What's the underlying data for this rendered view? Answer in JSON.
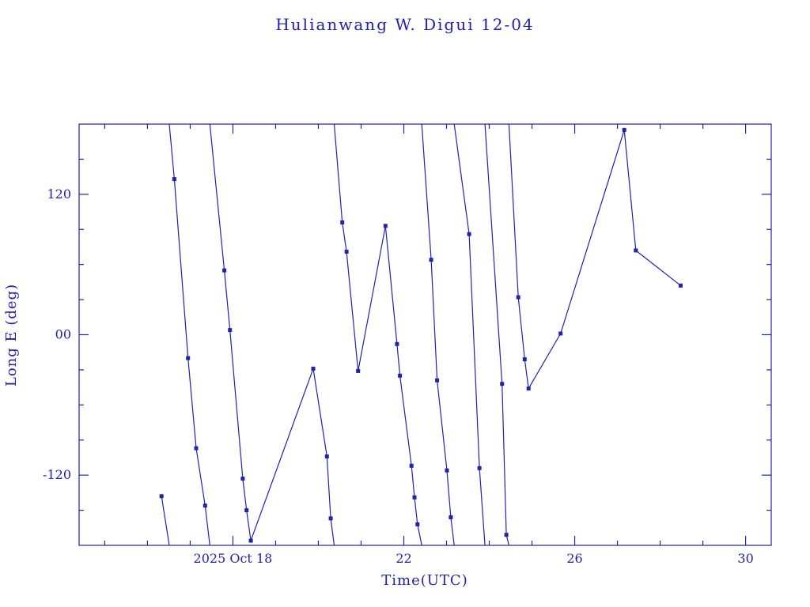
{
  "chart_data": {
    "type": "line",
    "title": "Hulianwang W. Digui 12-04",
    "xlabel": "Time(UTC)",
    "ylabel": "Long E (deg)",
    "x_unit": "day of October 2025 (UTC)",
    "y_unit": "degrees longitude East",
    "xlim": [
      14.4,
      30.6
    ],
    "ylim": [
      -180,
      180
    ],
    "grid": false,
    "legend": false,
    "line_color": "#2222aa",
    "marker": "square",
    "x_major_ticks": [
      {
        "v": 18,
        "label": "2025 Oct 18"
      },
      {
        "v": 22,
        "label": "22"
      },
      {
        "v": 26,
        "label": "26"
      },
      {
        "v": 30,
        "label": "30"
      }
    ],
    "x_minor_ticks": [
      15,
      16,
      17,
      19,
      20,
      21,
      23,
      24,
      25,
      27,
      28,
      29
    ],
    "y_major_ticks": [
      {
        "v": -120,
        "label": "-120"
      },
      {
        "v": 0,
        "label": "00"
      },
      {
        "v": 120,
        "label": "120"
      }
    ],
    "y_minor_ticks": [
      -150,
      -90,
      -60,
      -30,
      30,
      60,
      90,
      150
    ],
    "series_note": "single track, longitude wraps at +/-180; each segment drawn edge-to-edge; third element 1 = square marker plotted",
    "segments": [
      {
        "points": [
          [
            16.33,
            -138,
            1
          ],
          [
            16.51,
            -180,
            0
          ]
        ]
      },
      {
        "points": [
          [
            16.51,
            180,
            0
          ],
          [
            16.63,
            133,
            1
          ],
          [
            16.95,
            -20,
            1
          ],
          [
            17.14,
            -97,
            1
          ],
          [
            17.35,
            -146,
            1
          ],
          [
            17.46,
            -180,
            0
          ]
        ]
      },
      {
        "points": [
          [
            17.46,
            180,
            0
          ],
          [
            17.8,
            55,
            1
          ],
          [
            17.93,
            4,
            1
          ],
          [
            18.23,
            -123,
            1
          ],
          [
            18.32,
            -150,
            1
          ],
          [
            18.42,
            -176,
            1
          ],
          [
            19.88,
            -29,
            1
          ],
          [
            20.2,
            -104,
            1
          ],
          [
            20.29,
            -157,
            1
          ],
          [
            20.37,
            -180,
            0
          ]
        ]
      },
      {
        "points": [
          [
            20.37,
            180,
            0
          ],
          [
            20.56,
            96,
            1
          ],
          [
            20.66,
            71,
            1
          ],
          [
            20.93,
            -31,
            1
          ],
          [
            21.57,
            93,
            1
          ],
          [
            21.84,
            -8,
            1
          ],
          [
            21.91,
            -35,
            1
          ],
          [
            22.18,
            -112,
            1
          ],
          [
            22.25,
            -139,
            1
          ],
          [
            22.32,
            -162,
            1
          ],
          [
            22.42,
            -180,
            0
          ]
        ]
      },
      {
        "points": [
          [
            22.42,
            180,
            0
          ],
          [
            22.64,
            64,
            1
          ],
          [
            22.78,
            -39,
            1
          ],
          [
            23.01,
            -116,
            1
          ],
          [
            23.1,
            -156,
            1
          ],
          [
            23.18,
            -180,
            0
          ]
        ]
      },
      {
        "points": [
          [
            23.18,
            180,
            0
          ],
          [
            23.53,
            86,
            1
          ],
          [
            23.77,
            -114,
            1
          ],
          [
            23.9,
            -180,
            0
          ]
        ]
      },
      {
        "points": [
          [
            23.9,
            180,
            0
          ],
          [
            24.3,
            -42,
            1
          ],
          [
            24.4,
            -171,
            1
          ],
          [
            24.46,
            -180,
            0
          ]
        ]
      },
      {
        "points": [
          [
            24.46,
            180,
            0
          ],
          [
            24.68,
            32,
            1
          ],
          [
            24.83,
            -21,
            1
          ],
          [
            24.92,
            -46,
            1
          ],
          [
            25.67,
            1,
            1
          ],
          [
            27.16,
            175,
            1
          ],
          [
            27.43,
            72,
            1
          ],
          [
            28.48,
            42,
            1
          ]
        ]
      }
    ]
  }
}
